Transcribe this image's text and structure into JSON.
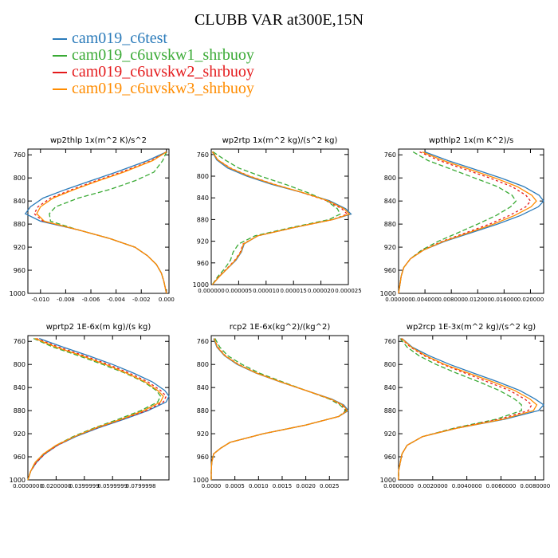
{
  "figure": {
    "title": "CLUBB VAR at300E,15N",
    "legend": [
      {
        "name": "cam019_c6test",
        "color": "#2b7bba"
      },
      {
        "name": "cam019_c6uvskw1_shrbuoy",
        "color": "#3aaa35"
      },
      {
        "name": "cam019_c6uvskw2_shrbuoy",
        "color": "#e41a1c"
      },
      {
        "name": "cam019_c6uvskw3_shrbuoy",
        "color": "#ff8c00"
      }
    ]
  },
  "chart_data": [
    {
      "type": "line",
      "title": "wp2thlp   1x(m^2 K)/s^2",
      "xlim": [
        -0.011,
        0.0002
      ],
      "xticks": [
        -0.01,
        -0.008,
        -0.006,
        -0.004,
        -0.002,
        0.0
      ],
      "xticklabels": [
        "-0.010",
        "-0.008",
        "-0.006",
        "-0.004",
        "-0.002",
        "0.000"
      ],
      "ylim": [
        1000,
        750
      ],
      "yticks": [
        760,
        800,
        840,
        880,
        920,
        960,
        1000
      ],
      "yticklabels": [
        "760",
        "800",
        "840",
        "880",
        "920",
        "960",
        "1000"
      ],
      "y": [
        755,
        770,
        790,
        805,
        820,
        835,
        850,
        862,
        875,
        890,
        905,
        920,
        935,
        950,
        965,
        980,
        1000
      ],
      "series": [
        {
          "values": [
            0.0,
            -0.0015,
            -0.004,
            -0.006,
            -0.008,
            -0.0098,
            -0.0108,
            -0.0112,
            -0.01,
            -0.007,
            -0.0045,
            -0.0025,
            -0.0015,
            -0.0008,
            -0.0004,
            -0.0002,
            0.0
          ],
          "color": "#2b7bba",
          "dash": "none"
        },
        {
          "values": [
            0.0,
            -0.0003,
            -0.001,
            -0.0025,
            -0.0045,
            -0.007,
            -0.0088,
            -0.0093,
            -0.0092,
            -0.007,
            -0.0045,
            -0.0025,
            -0.0015,
            -0.0008,
            -0.0004,
            -0.0002,
            0.0
          ],
          "color": "#3aaa35",
          "dash": "6,3"
        },
        {
          "values": [
            0.0,
            -0.0012,
            -0.0036,
            -0.0056,
            -0.0075,
            -0.0092,
            -0.0102,
            -0.0105,
            -0.0098,
            -0.007,
            -0.0045,
            -0.0025,
            -0.0015,
            -0.0008,
            -0.0004,
            -0.0002,
            0.0
          ],
          "color": "#e41a1c",
          "dash": "3,3"
        },
        {
          "values": [
            0.0,
            -0.0011,
            -0.0034,
            -0.0054,
            -0.0073,
            -0.009,
            -0.01,
            -0.0103,
            -0.0097,
            -0.007,
            -0.0045,
            -0.0025,
            -0.0015,
            -0.0008,
            -0.0004,
            -0.0002,
            0.0
          ],
          "color": "#ff8c00",
          "dash": "none"
        }
      ]
    },
    {
      "type": "line",
      "title": "wp2rtp   1x(m^2 kg)/(s^2 kg)",
      "xlim": [
        0.0,
        2.5e-05
      ],
      "xticks": [
        0.0,
        5e-06,
        1e-05,
        1.5e-05,
        2e-05,
        2.5e-05
      ],
      "xticklabels": [
        "0.000000",
        "0.000005",
        "0.000010",
        "0.000015",
        "0.000020",
        "0.000025"
      ],
      "ylim": [
        1000,
        750
      ],
      "yticks": [
        760,
        800,
        840,
        880,
        920,
        960,
        1000
      ],
      "yticklabels": [
        "760",
        "800",
        "840",
        "880",
        "920",
        "960",
        "1000"
      ],
      "y": [
        755,
        770,
        785,
        800,
        815,
        830,
        845,
        860,
        870,
        880,
        895,
        910,
        925,
        940,
        955,
        970,
        985,
        1000
      ],
      "series": [
        {
          "values": [
            2e-07,
            1e-06,
            3e-06,
            6.5e-06,
            1.1e-05,
            1.65e-05,
            2.15e-05,
            2.45e-05,
            2.55e-05,
            2.22e-05,
            1.5e-05,
            8.5e-06,
            6e-06,
            5.5e-06,
            4.5e-06,
            3e-06,
            1.5e-06,
            2e-07
          ],
          "color": "#2b7bba",
          "dash": "none"
        },
        {
          "values": [
            3e-07,
            2.5e-06,
            5e-06,
            9e-06,
            1.35e-05,
            1.75e-05,
            2.1e-05,
            2.3e-05,
            2.35e-05,
            2.15e-05,
            1.45e-05,
            8e-06,
            5e-06,
            4e-06,
            3.5e-06,
            2.5e-06,
            1.2e-06,
            2e-07
          ],
          "color": "#3aaa35",
          "dash": "6,3"
        },
        {
          "values": [
            2e-07,
            1.2e-06,
            3.5e-06,
            7e-06,
            1.15e-05,
            1.65e-05,
            2.1e-05,
            2.38e-05,
            2.48e-05,
            2.22e-05,
            1.5e-05,
            8.5e-06,
            5.8e-06,
            5.3e-06,
            4.3e-06,
            2.9e-06,
            1.4e-06,
            2e-07
          ],
          "color": "#e41a1c",
          "dash": "3,3"
        },
        {
          "values": [
            2e-07,
            1.2e-06,
            3.4e-06,
            6.9e-06,
            1.14e-05,
            1.66e-05,
            2.12e-05,
            2.42e-05,
            2.52e-05,
            2.22e-05,
            1.5e-05,
            8.5e-06,
            5.9e-06,
            5.4e-06,
            4.4e-06,
            3e-06,
            1.5e-06,
            2e-07
          ],
          "color": "#ff8c00",
          "dash": "none"
        }
      ]
    },
    {
      "type": "line",
      "title": "wpthlp2   1x(m K^2)/s",
      "xlim": [
        0.0,
        0.022
      ],
      "xticks": [
        0.0,
        0.004,
        0.008,
        0.012,
        0.016,
        0.02
      ],
      "xticklabels": [
        "0.000000",
        "0.004000",
        "0.008000",
        "0.012000",
        "0.016000",
        "0.020000"
      ],
      "ylim": [
        1000,
        750
      ],
      "yticks": [
        760,
        800,
        840,
        880,
        920,
        960,
        1000
      ],
      "yticklabels": [
        "760",
        "800",
        "840",
        "880",
        "920",
        "960",
        "1000"
      ],
      "y": [
        755,
        770,
        785,
        800,
        815,
        830,
        840,
        850,
        865,
        880,
        895,
        910,
        925,
        940,
        955,
        970,
        985,
        1000
      ],
      "series": [
        {
          "values": [
            0.004,
            0.0075,
            0.0115,
            0.0155,
            0.019,
            0.0213,
            0.022,
            0.0212,
            0.0185,
            0.015,
            0.011,
            0.007,
            0.0038,
            0.0018,
            0.0008,
            0.0004,
            0.0002,
            0.0
          ],
          "color": "#2b7bba",
          "dash": "none"
        },
        {
          "values": [
            0.0022,
            0.0045,
            0.008,
            0.0115,
            0.015,
            0.0172,
            0.0178,
            0.017,
            0.0148,
            0.012,
            0.009,
            0.006,
            0.0035,
            0.0018,
            0.0008,
            0.0004,
            0.0002,
            0.0
          ],
          "color": "#3aaa35",
          "dash": "6,3"
        },
        {
          "values": [
            0.0032,
            0.0062,
            0.01,
            0.0138,
            0.0172,
            0.0193,
            0.02,
            0.0193,
            0.0168,
            0.0138,
            0.0102,
            0.0066,
            0.0037,
            0.0018,
            0.0008,
            0.0004,
            0.0002,
            0.0
          ],
          "color": "#e41a1c",
          "dash": "3,3"
        },
        {
          "values": [
            0.0036,
            0.0068,
            0.0107,
            0.0146,
            0.018,
            0.0202,
            0.0209,
            0.0201,
            0.0176,
            0.0144,
            0.0106,
            0.0068,
            0.0038,
            0.0018,
            0.0008,
            0.0004,
            0.0002,
            0.0
          ],
          "color": "#ff8c00",
          "dash": "none"
        }
      ]
    },
    {
      "type": "line",
      "title": "wprtp2   1E-6x(m kg)/(s kg)",
      "xlim": [
        0.0,
        0.1
      ],
      "xticks": [
        0.0,
        0.02,
        0.04,
        0.06,
        0.08
      ],
      "xticklabels": [
        "0.0000000",
        "0.0200000",
        "0.0399999",
        "0.0599999",
        "0.0799998"
      ],
      "ylim": [
        1000,
        750
      ],
      "yticks": [
        760,
        800,
        840,
        880,
        920,
        960,
        1000
      ],
      "yticklabels": [
        "760",
        "800",
        "840",
        "880",
        "920",
        "960",
        "1000"
      ],
      "y": [
        755,
        770,
        785,
        800,
        815,
        830,
        845,
        855,
        865,
        880,
        895,
        910,
        925,
        940,
        955,
        970,
        985,
        1000
      ],
      "series": [
        {
          "values": [
            0.008,
            0.025,
            0.043,
            0.06,
            0.075,
            0.088,
            0.097,
            0.1,
            0.098,
            0.085,
            0.068,
            0.05,
            0.034,
            0.021,
            0.012,
            0.006,
            0.002,
            0.0
          ],
          "color": "#2b7bba",
          "dash": "none"
        },
        {
          "values": [
            0.004,
            0.018,
            0.036,
            0.053,
            0.069,
            0.082,
            0.091,
            0.094,
            0.092,
            0.08,
            0.064,
            0.047,
            0.032,
            0.02,
            0.011,
            0.005,
            0.002,
            0.0
          ],
          "color": "#3aaa35",
          "dash": "6,3"
        },
        {
          "values": [
            0.006,
            0.022,
            0.04,
            0.057,
            0.072,
            0.085,
            0.094,
            0.098,
            0.096,
            0.084,
            0.067,
            0.049,
            0.033,
            0.021,
            0.012,
            0.006,
            0.002,
            0.0
          ],
          "color": "#e41a1c",
          "dash": "3,3"
        },
        {
          "values": [
            0.005,
            0.02,
            0.038,
            0.055,
            0.07,
            0.083,
            0.092,
            0.096,
            0.094,
            0.082,
            0.066,
            0.048,
            0.033,
            0.02,
            0.011,
            0.005,
            0.002,
            0.0
          ],
          "color": "#ff8c00",
          "dash": "none"
        }
      ]
    },
    {
      "type": "line",
      "title": "rcp2   1E-6x(kg^2)/(kg^2)",
      "xlim": [
        0.0,
        0.0029
      ],
      "xticks": [
        0.0,
        0.0005,
        0.001,
        0.0015,
        0.002,
        0.0025
      ],
      "xticklabels": [
        "0.0000",
        "0.0005",
        "0.0010",
        "0.0015",
        "0.0020",
        "0.0025"
      ],
      "ylim": [
        1000,
        750
      ],
      "yticks": [
        760,
        800,
        840,
        880,
        920,
        960,
        1000
      ],
      "yticklabels": [
        "760",
        "800",
        "840",
        "880",
        "920",
        "960",
        "1000"
      ],
      "y": [
        755,
        770,
        785,
        800,
        815,
        830,
        845,
        860,
        870,
        880,
        890,
        905,
        920,
        935,
        945,
        955,
        970,
        985,
        1000
      ],
      "series": [
        {
          "values": [
            5e-05,
            0.00012,
            0.00028,
            0.00055,
            0.00095,
            0.00145,
            0.002,
            0.00255,
            0.0028,
            0.0029,
            0.0027,
            0.002,
            0.0011,
            0.0004,
            0.0002,
            5e-05,
            1e-05,
            0.0,
            0.0
          ],
          "color": "#2b7bba",
          "dash": "none"
        },
        {
          "values": [
            8e-05,
            0.00018,
            0.00035,
            0.00065,
            0.00102,
            0.0015,
            0.002,
            0.0025,
            0.00272,
            0.00285,
            0.0027,
            0.002,
            0.0011,
            0.0004,
            0.0002,
            5e-05,
            1e-05,
            0.0,
            0.0
          ],
          "color": "#3aaa35",
          "dash": "6,3"
        },
        {
          "values": [
            6e-05,
            0.00014,
            0.0003,
            0.00058,
            0.00097,
            0.00146,
            0.002,
            0.00252,
            0.00276,
            0.00287,
            0.0027,
            0.002,
            0.0011,
            0.0004,
            0.0002,
            5e-05,
            1e-05,
            0.0,
            0.0
          ],
          "color": "#e41a1c",
          "dash": "3,3"
        },
        {
          "values": [
            6e-05,
            0.00013,
            0.00029,
            0.00057,
            0.00096,
            0.00146,
            0.002,
            0.00253,
            0.00278,
            0.00288,
            0.0027,
            0.002,
            0.0011,
            0.0004,
            0.0002,
            5e-05,
            1e-05,
            0.0,
            0.0
          ],
          "color": "#ff8c00",
          "dash": "none"
        }
      ]
    },
    {
      "type": "line",
      "title": "wp2rcp   1E-3x(m^2 kg)/(s^2 kg)",
      "xlim": [
        0.0,
        0.0085
      ],
      "xticks": [
        0.0,
        0.002,
        0.004,
        0.006,
        0.008
      ],
      "xticklabels": [
        "0.0000000",
        "0.0020000",
        "0.0040000",
        "0.0060000",
        "0.0080000"
      ],
      "ylim": [
        1000,
        750
      ],
      "yticks": [
        760,
        800,
        840,
        880,
        920,
        960,
        1000
      ],
      "yticklabels": [
        "760",
        "800",
        "840",
        "880",
        "920",
        "960",
        "1000"
      ],
      "y": [
        755,
        770,
        785,
        800,
        815,
        830,
        845,
        860,
        870,
        880,
        895,
        910,
        925,
        940,
        955,
        970,
        985,
        1000
      ],
      "series": [
        {
          "values": [
            0.0002,
            0.0008,
            0.0018,
            0.003,
            0.0044,
            0.0058,
            0.0071,
            0.008,
            0.0085,
            0.0082,
            0.0062,
            0.0035,
            0.0014,
            0.0005,
            0.0002,
            0.0001,
            0.0,
            0.0
          ],
          "color": "#2b7bba",
          "dash": "none"
        },
        {
          "values": [
            0.0001,
            0.0005,
            0.0012,
            0.0022,
            0.0034,
            0.0047,
            0.0059,
            0.0068,
            0.0072,
            0.0072,
            0.0057,
            0.0033,
            0.0014,
            0.0005,
            0.0002,
            0.0001,
            0.0,
            0.0
          ],
          "color": "#3aaa35",
          "dash": "6,3"
        },
        {
          "values": [
            0.00015,
            0.0007,
            0.0015,
            0.0026,
            0.0039,
            0.0052,
            0.0065,
            0.0074,
            0.0078,
            0.0076,
            0.0059,
            0.0034,
            0.0014,
            0.0005,
            0.0002,
            0.0001,
            0.0,
            0.0
          ],
          "color": "#e41a1c",
          "dash": "3,3"
        },
        {
          "values": [
            0.00018,
            0.00075,
            0.0016,
            0.0027,
            0.0041,
            0.0055,
            0.0068,
            0.0077,
            0.0081,
            0.0079,
            0.0061,
            0.0035,
            0.0014,
            0.0005,
            0.0002,
            0.0001,
            0.0,
            0.0
          ],
          "color": "#ff8c00",
          "dash": "none"
        }
      ]
    }
  ]
}
